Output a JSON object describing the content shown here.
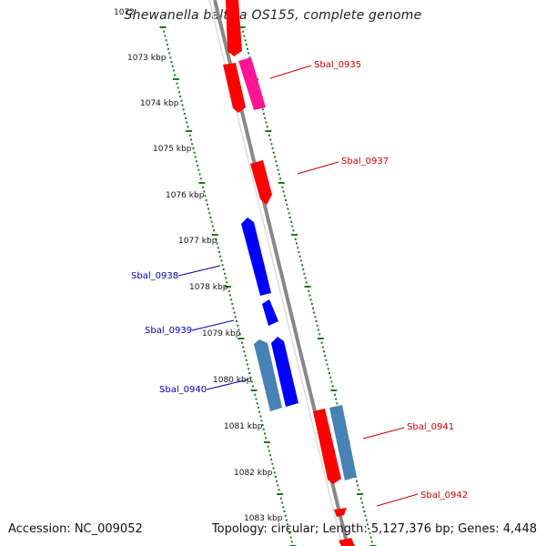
{
  "map": {
    "title": "Shewanella baltica OS155, complete genome",
    "accession": "Accession: NC_009052",
    "summary": "Topology: circular; Length: 5,127,376 bp; Genes: 4,448",
    "top_partial_label": "1072",
    "kbp_labels": [
      "1073 kbp",
      "1074 kbp",
      "1075 kbp",
      "1076 kbp",
      "1077 kbp",
      "1078 kbp",
      "1079 kbp",
      "1080 kbp",
      "1081 kbp",
      "1082 kbp",
      "1083 kbp"
    ],
    "gene_labels_right": [
      "Sbal_0935",
      "Sbal_0937",
      "Sbal_0941",
      "Sbal_0942"
    ],
    "gene_labels_left": [
      "Sbal_0938",
      "Sbal_0939",
      "Sbal_0940"
    ],
    "colors": {
      "backbone": "#888888",
      "tick": "#1a7a1a",
      "forward_gene": "#ff0000",
      "forward_gene_alt": "#ff1493",
      "reverse_gene": "#0000ff",
      "reverse_gene_alt": "#4682b4",
      "right_label": "#cc0000",
      "left_label": "#0000aa"
    }
  }
}
